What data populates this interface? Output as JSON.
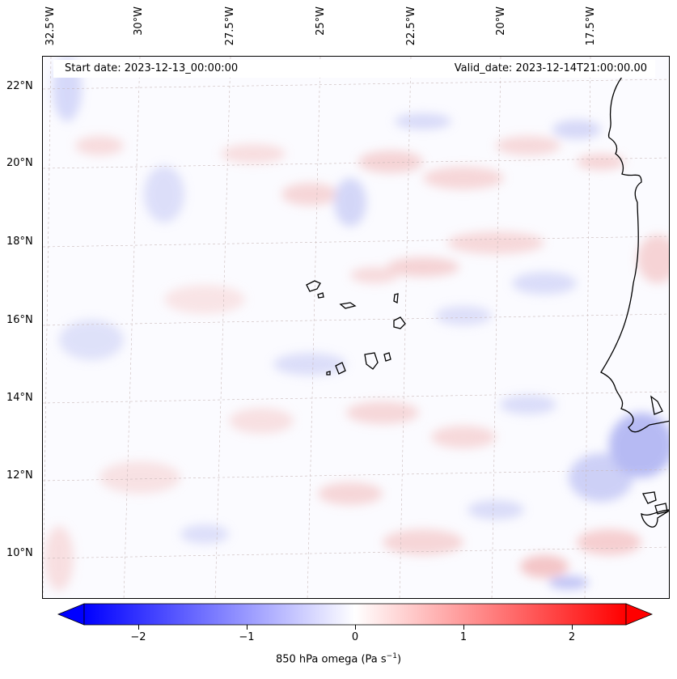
{
  "map": {
    "start_date": "Start date: 2023-12-13_00:00:00",
    "valid_date": "Valid_date: 2023-12-14T21:00:00.00",
    "lon_labels": [
      "32.5°W",
      "30°W",
      "27.5°W",
      "25°W",
      "22.5°W",
      "20°W",
      "17.5°W"
    ],
    "lat_labels": [
      "22°N",
      "20°N",
      "18°N",
      "16°N",
      "14°N",
      "12°N",
      "10°N"
    ],
    "colors": {
      "positive": "#ff0000",
      "negative": "#0000ff",
      "neutral": "#ffffff",
      "coastline": "#000000"
    }
  },
  "colorbar": {
    "label": "850 hPa omega (Pa s",
    "label_exp": "−1",
    "label_close": ")",
    "ticks": [
      "−2",
      "−1",
      "0",
      "1",
      "2"
    ],
    "range": [
      -2.5,
      2.5
    ]
  }
}
